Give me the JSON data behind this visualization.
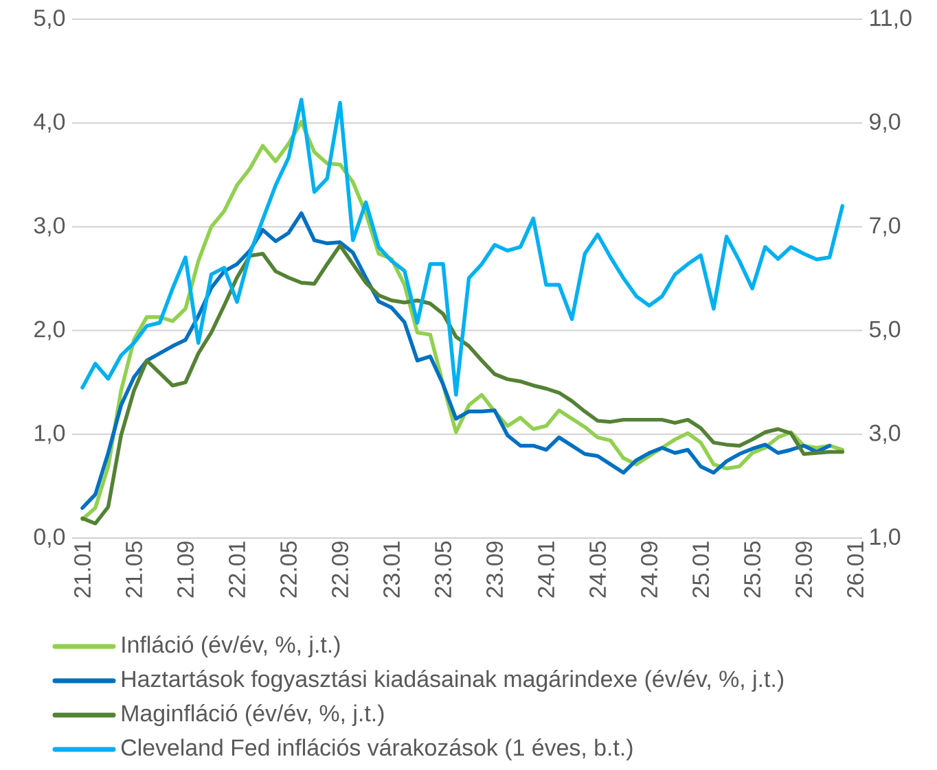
{
  "chart_data": {
    "type": "line",
    "categories": [
      "21.01",
      null,
      null,
      null,
      "21.05",
      null,
      null,
      null,
      "21.09",
      null,
      null,
      null,
      "22.01",
      null,
      null,
      null,
      "22.05",
      null,
      null,
      null,
      "22.09",
      null,
      null,
      null,
      "23.01",
      null,
      null,
      null,
      "23.05",
      null,
      null,
      null,
      "23.09",
      null,
      null,
      null,
      "24.01",
      null,
      null,
      null,
      "24.05",
      null,
      null,
      null,
      "24.09",
      null,
      null,
      null,
      "25.01",
      null,
      null,
      null,
      "25.05",
      null,
      null,
      null,
      "25.09",
      null,
      null,
      null,
      "26.01"
    ],
    "series": [
      {
        "name": "Infláció (év/év, %, j.t.)",
        "color": "#92d050",
        "values": [
          0.18,
          0.29,
          0.69,
          1.42,
          1.91,
          2.13,
          2.13,
          2.09,
          2.21,
          2.67,
          3.0,
          3.15,
          3.4,
          3.56,
          3.78,
          3.63,
          3.8,
          4.01,
          3.72,
          3.61,
          3.6,
          3.43,
          3.13,
          2.74,
          2.69,
          2.44,
          1.98,
          1.96,
          1.48,
          1.02,
          1.28,
          1.38,
          1.22,
          1.08,
          1.16,
          1.05,
          1.08,
          1.23,
          1.15,
          1.07,
          0.97,
          0.94,
          0.77,
          0.71,
          0.79,
          0.87,
          0.95,
          1.01,
          0.92,
          0.71,
          0.67,
          0.69,
          0.82,
          0.87,
          0.97,
          1.02,
          0.89,
          0.87,
          0.89,
          0.85,
          null
        ]
      },
      {
        "name": "Haztartások fogyasztási kiadásainak magárindexe (év/év, %, j.t.)",
        "color": "#0070c0",
        "values": [
          0.29,
          0.42,
          0.82,
          1.28,
          1.55,
          1.71,
          1.78,
          1.85,
          1.91,
          2.14,
          2.41,
          2.57,
          2.64,
          2.77,
          2.97,
          2.86,
          2.94,
          3.13,
          2.87,
          2.84,
          2.85,
          2.75,
          2.51,
          2.28,
          2.22,
          2.08,
          1.71,
          1.75,
          1.48,
          1.15,
          1.22,
          1.22,
          1.23,
          0.99,
          0.89,
          0.89,
          0.85,
          0.97,
          0.89,
          0.81,
          0.79,
          0.71,
          0.63,
          0.75,
          0.82,
          0.87,
          0.82,
          0.85,
          0.69,
          0.63,
          0.74,
          0.81,
          0.86,
          0.9,
          0.82,
          0.85,
          0.89,
          0.83,
          0.89,
          null,
          null
        ]
      },
      {
        "name": "Maginfláció (év/év, %, j.t.)",
        "color": "#548235",
        "values": [
          0.19,
          0.14,
          0.3,
          0.99,
          1.42,
          1.71,
          1.59,
          1.47,
          1.5,
          1.78,
          1.98,
          2.24,
          2.51,
          2.72,
          2.74,
          2.57,
          2.51,
          2.46,
          2.45,
          2.64,
          2.82,
          2.64,
          2.46,
          2.34,
          2.29,
          2.27,
          2.29,
          2.26,
          2.16,
          1.94,
          1.85,
          1.71,
          1.58,
          1.53,
          1.51,
          1.47,
          1.44,
          1.4,
          1.32,
          1.22,
          1.13,
          1.12,
          1.14,
          1.14,
          1.14,
          1.14,
          1.11,
          1.14,
          1.06,
          0.92,
          0.9,
          0.89,
          0.95,
          1.02,
          1.05,
          1.01,
          0.81,
          0.82,
          0.83,
          0.83,
          null
        ]
      },
      {
        "name": "Cleveland Fed inflációs várakozások (1 éves, b.t.)",
        "color": "#00b0f0",
        "axis": "y2",
        "values": [
          3.9,
          4.36,
          4.07,
          4.52,
          4.76,
          5.09,
          5.15,
          5.81,
          6.41,
          4.76,
          6.08,
          6.21,
          5.55,
          6.48,
          7.14,
          7.8,
          8.33,
          9.45,
          7.67,
          7.93,
          9.39,
          6.74,
          7.47,
          6.61,
          6.34,
          6.15,
          5.15,
          6.28,
          6.28,
          3.76,
          6.01,
          6.28,
          6.65,
          6.54,
          6.61,
          7.16,
          5.88,
          5.88,
          5.22,
          6.48,
          6.85,
          6.41,
          6.01,
          5.66,
          5.48,
          5.66,
          6.08,
          6.28,
          6.45,
          5.42,
          6.81,
          6.34,
          5.81,
          6.61,
          6.38,
          6.61,
          6.48,
          6.37,
          6.41,
          7.4,
          null
        ]
      }
    ],
    "ylim": [
      0,
      5
    ],
    "yticks": [
      {
        "value": 0,
        "label": "0,0"
      },
      {
        "value": 1,
        "label": "1,0"
      },
      {
        "value": 2,
        "label": "2,0"
      },
      {
        "value": 3,
        "label": "3,0"
      },
      {
        "value": 4,
        "label": "4,0"
      },
      {
        "value": 5,
        "label": "5,0"
      }
    ],
    "y2lim": [
      1,
      11
    ],
    "y2ticks": [
      {
        "value": 1,
        "label": "1,0"
      },
      {
        "value": 3,
        "label": "3,0"
      },
      {
        "value": 5,
        "label": "5,0"
      },
      {
        "value": 7,
        "label": "7,0"
      },
      {
        "value": 9,
        "label": "9,0"
      },
      {
        "value": 11,
        "label": "11,0"
      }
    ],
    "grid": "y",
    "legend": "bottom",
    "marker": "none",
    "line_style": "solid"
  }
}
